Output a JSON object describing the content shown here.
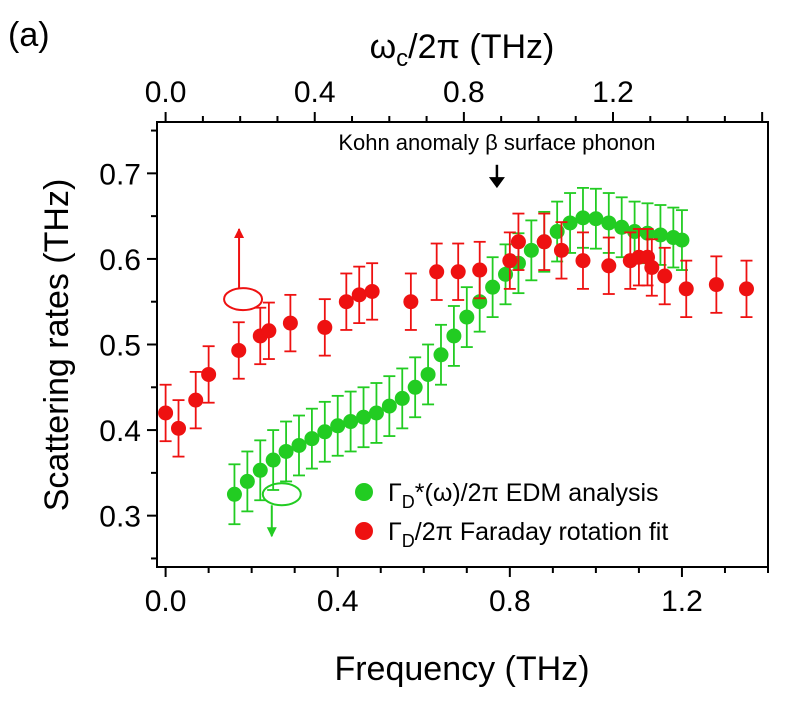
{
  "chart_data": {
    "type": "scatter",
    "panel_label": "(a)",
    "xlabel": "Frequency (THz)",
    "ylabel": "Scattering rates (THz)",
    "top_xlabel": "ωc/2π (THz)",
    "top_xlabel_main": "ω",
    "top_xlabel_sub": "c",
    "top_xlabel_rest": "/2π (THz)",
    "xlim": [
      -0.02,
      1.4
    ],
    "ylim": [
      0.24,
      0.76
    ],
    "x_ticks": [
      "0.0",
      "0.4",
      "0.8",
      "1.2"
    ],
    "x_tick_values": [
      0.0,
      0.4,
      0.8,
      1.2
    ],
    "y_ticks": [
      "0.3",
      "0.4",
      "0.5",
      "0.6",
      "0.7"
    ],
    "y_tick_values": [
      0.3,
      0.4,
      0.5,
      0.6,
      0.7
    ],
    "top_x_ticks": [
      "0.0",
      "0.4",
      "0.8",
      "1.2"
    ],
    "top_x_tick_values": [
      0.0,
      0.3466,
      0.6932,
      1.0398
    ],
    "annotation": {
      "text": "Kohn anomaly β surface phonon",
      "x": 0.77,
      "arrow_from_y": 0.71,
      "arrow_to_y": 0.685
    },
    "series": [
      {
        "name": "ΓD*(ω)/2π EDM analysis",
        "legend_main": "Γ",
        "legend_sub": "D",
        "legend_rest": "*(ω)/2π EDM analysis",
        "color": "#22cc22",
        "points": [
          {
            "x": 0.16,
            "y": 0.325,
            "err": 0.035
          },
          {
            "x": 0.19,
            "y": 0.34,
            "err": 0.035
          },
          {
            "x": 0.22,
            "y": 0.353,
            "err": 0.035
          },
          {
            "x": 0.25,
            "y": 0.365,
            "err": 0.035
          },
          {
            "x": 0.28,
            "y": 0.375,
            "err": 0.035
          },
          {
            "x": 0.31,
            "y": 0.382,
            "err": 0.035
          },
          {
            "x": 0.34,
            "y": 0.39,
            "err": 0.035
          },
          {
            "x": 0.37,
            "y": 0.398,
            "err": 0.035
          },
          {
            "x": 0.4,
            "y": 0.405,
            "err": 0.035
          },
          {
            "x": 0.43,
            "y": 0.41,
            "err": 0.035
          },
          {
            "x": 0.46,
            "y": 0.415,
            "err": 0.035
          },
          {
            "x": 0.49,
            "y": 0.42,
            "err": 0.035
          },
          {
            "x": 0.52,
            "y": 0.428,
            "err": 0.035
          },
          {
            "x": 0.55,
            "y": 0.437,
            "err": 0.035
          },
          {
            "x": 0.58,
            "y": 0.45,
            "err": 0.035
          },
          {
            "x": 0.61,
            "y": 0.465,
            "err": 0.035
          },
          {
            "x": 0.64,
            "y": 0.488,
            "err": 0.035
          },
          {
            "x": 0.67,
            "y": 0.51,
            "err": 0.035
          },
          {
            "x": 0.7,
            "y": 0.532,
            "err": 0.035
          },
          {
            "x": 0.73,
            "y": 0.55,
            "err": 0.035
          },
          {
            "x": 0.76,
            "y": 0.567,
            "err": 0.035
          },
          {
            "x": 0.79,
            "y": 0.582,
            "err": 0.035
          },
          {
            "x": 0.82,
            "y": 0.595,
            "err": 0.035
          },
          {
            "x": 0.85,
            "y": 0.61,
            "err": 0.035
          },
          {
            "x": 0.88,
            "y": 0.62,
            "err": 0.035
          },
          {
            "x": 0.91,
            "y": 0.632,
            "err": 0.035
          },
          {
            "x": 0.94,
            "y": 0.642,
            "err": 0.035
          },
          {
            "x": 0.97,
            "y": 0.648,
            "err": 0.035
          },
          {
            "x": 1.0,
            "y": 0.647,
            "err": 0.035
          },
          {
            "x": 1.03,
            "y": 0.642,
            "err": 0.035
          },
          {
            "x": 1.06,
            "y": 0.637,
            "err": 0.035
          },
          {
            "x": 1.09,
            "y": 0.632,
            "err": 0.035
          },
          {
            "x": 1.12,
            "y": 0.63,
            "err": 0.035
          },
          {
            "x": 1.15,
            "y": 0.628,
            "err": 0.035
          },
          {
            "x": 1.18,
            "y": 0.625,
            "err": 0.035
          },
          {
            "x": 1.2,
            "y": 0.622,
            "err": 0.035
          }
        ]
      },
      {
        "name": "ΓD/2π Faraday rotation fit",
        "legend_main": "Γ",
        "legend_sub": "D",
        "legend_rest": "/2π Faraday rotation fit",
        "color": "#ee1111",
        "points": [
          {
            "x": 0.0,
            "y": 0.42,
            "err": 0.033
          },
          {
            "x": 0.03,
            "y": 0.402,
            "err": 0.033
          },
          {
            "x": 0.07,
            "y": 0.435,
            "err": 0.033
          },
          {
            "x": 0.1,
            "y": 0.465,
            "err": 0.033
          },
          {
            "x": 0.17,
            "y": 0.493,
            "err": 0.033
          },
          {
            "x": 0.22,
            "y": 0.51,
            "err": 0.033
          },
          {
            "x": 0.24,
            "y": 0.516,
            "err": 0.033
          },
          {
            "x": 0.29,
            "y": 0.525,
            "err": 0.033
          },
          {
            "x": 0.37,
            "y": 0.52,
            "err": 0.033
          },
          {
            "x": 0.42,
            "y": 0.55,
            "err": 0.033
          },
          {
            "x": 0.45,
            "y": 0.558,
            "err": 0.033
          },
          {
            "x": 0.48,
            "y": 0.562,
            "err": 0.033
          },
          {
            "x": 0.57,
            "y": 0.55,
            "err": 0.033
          },
          {
            "x": 0.63,
            "y": 0.585,
            "err": 0.033
          },
          {
            "x": 0.68,
            "y": 0.585,
            "err": 0.033
          },
          {
            "x": 0.73,
            "y": 0.587,
            "err": 0.033
          },
          {
            "x": 0.8,
            "y": 0.598,
            "err": 0.033
          },
          {
            "x": 0.82,
            "y": 0.62,
            "err": 0.033
          },
          {
            "x": 0.88,
            "y": 0.62,
            "err": 0.033
          },
          {
            "x": 0.92,
            "y": 0.61,
            "err": 0.033
          },
          {
            "x": 0.97,
            "y": 0.598,
            "err": 0.033
          },
          {
            "x": 1.03,
            "y": 0.592,
            "err": 0.033
          },
          {
            "x": 1.08,
            "y": 0.598,
            "err": 0.033
          },
          {
            "x": 1.1,
            "y": 0.602,
            "err": 0.033
          },
          {
            "x": 1.12,
            "y": 0.602,
            "err": 0.033
          },
          {
            "x": 1.13,
            "y": 0.59,
            "err": 0.033
          },
          {
            "x": 1.16,
            "y": 0.58,
            "err": 0.033
          },
          {
            "x": 1.21,
            "y": 0.565,
            "err": 0.033
          },
          {
            "x": 1.28,
            "y": 0.57,
            "err": 0.033
          },
          {
            "x": 1.35,
            "y": 0.565,
            "err": 0.033
          }
        ]
      }
    ],
    "axis_markers": [
      {
        "name": "red-axis-marker",
        "color": "#ee1111",
        "x": 0.18,
        "y": 0.553,
        "direction": "up",
        "arrow_to_y": 0.635
      },
      {
        "name": "green-axis-marker",
        "color": "#22cc22",
        "x": 0.27,
        "y": 0.325,
        "direction": "down",
        "arrow_to_y": 0.276
      }
    ]
  }
}
